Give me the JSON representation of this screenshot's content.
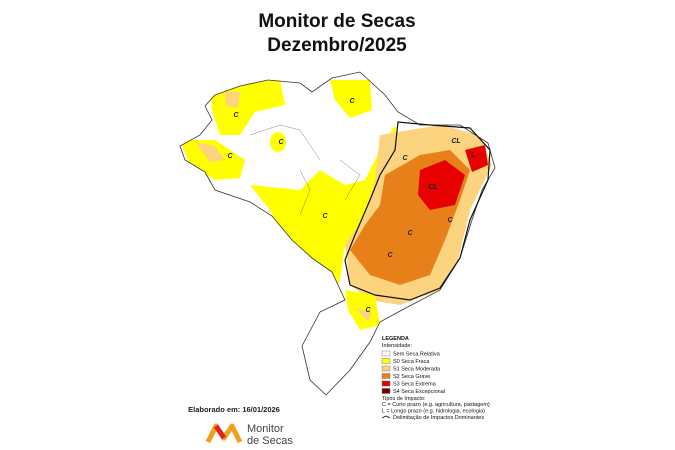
{
  "header": {
    "title": "Monitor de Secas",
    "subtitle": "Dezembro/2025"
  },
  "legend": {
    "title": "LEGENDA",
    "intensity_title": "Intensidade:",
    "items": [
      {
        "label": "Sem Seca Relativa",
        "color": "#ffffff"
      },
      {
        "label": "S0 Seca Fraca",
        "color": "#ffff00"
      },
      {
        "label": "S1 Seca Moderada",
        "color": "#fcd37f"
      },
      {
        "label": "S2 Seca Grave",
        "color": "#e8801a"
      },
      {
        "label": "S3 Seca Extrema",
        "color": "#e60000"
      },
      {
        "label": "S4 Seca Excepcional",
        "color": "#730000"
      }
    ],
    "impact_title": "Tipos de Impacto:",
    "impact_items": [
      "C = Curto prazo (e.g. agricultura, pastagem)",
      "L = Longo prazo (e.g. hidrologia, ecologia)"
    ],
    "delimitation": "Delimitação de Impactos Dominantes"
  },
  "map": {
    "labels": [
      "C",
      "C",
      "C",
      "C",
      "C",
      "C",
      "C",
      "CL",
      "CL",
      "L",
      "C",
      "C",
      "C"
    ]
  },
  "footer": {
    "date": "Elaborado em: 16/01/2026",
    "logo_line1": "Monitor",
    "logo_line2": "de Secas"
  }
}
